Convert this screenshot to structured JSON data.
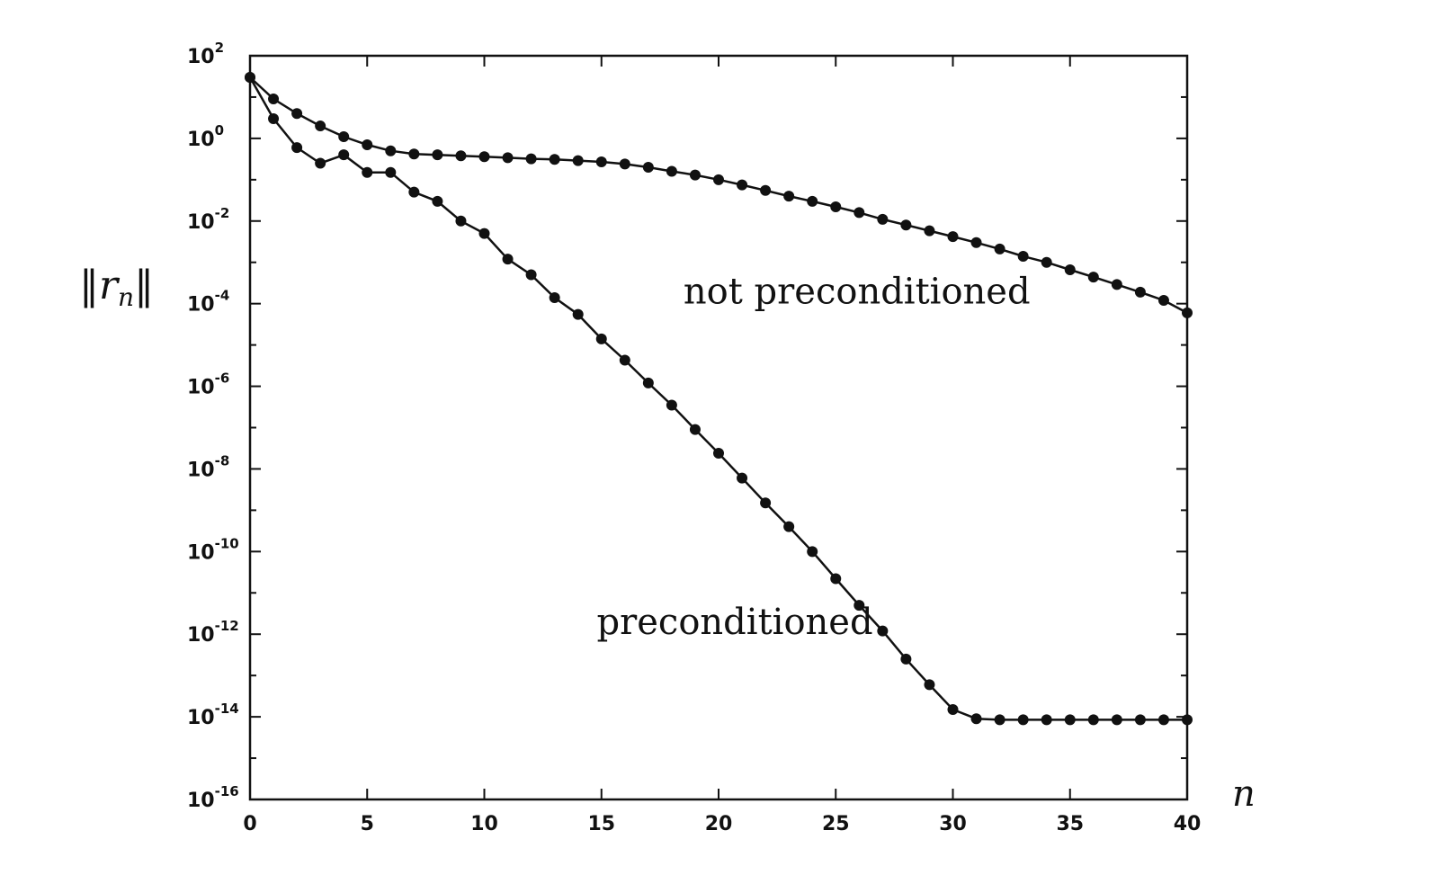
{
  "chart_data": {
    "type": "line",
    "xlabel": "n",
    "ylabel": "‖r_n‖",
    "ylabel_parts": {
      "left_bars": "‖",
      "var": "r",
      "sub": "n",
      "right_bars": "‖"
    },
    "xlim": [
      0,
      40
    ],
    "ylim": [
      1e-16,
      100
    ],
    "yscale": "log",
    "grid": false,
    "x_ticks": [
      0,
      5,
      10,
      15,
      20,
      25,
      30,
      35,
      40
    ],
    "x_tick_labels": [
      "0",
      "5",
      "10",
      "15",
      "20",
      "25",
      "30",
      "35",
      "40"
    ],
    "y_tick_exponents": [
      2,
      0,
      -2,
      -4,
      -6,
      -8,
      -10,
      -12,
      -14,
      -16
    ],
    "y_tick_labels": [
      {
        "base": "10",
        "exp": "2"
      },
      {
        "base": "10",
        "exp": "0"
      },
      {
        "base": "10",
        "exp": "-2"
      },
      {
        "base": "10",
        "exp": "-4"
      },
      {
        "base": "10",
        "exp": "-6"
      },
      {
        "base": "10",
        "exp": "-8"
      },
      {
        "base": "10",
        "exp": "-10"
      },
      {
        "base": "10",
        "exp": "-12"
      },
      {
        "base": "10",
        "exp": "-14"
      },
      {
        "base": "10",
        "exp": "-16"
      }
    ],
    "x": [
      0,
      1,
      2,
      3,
      4,
      5,
      6,
      7,
      8,
      9,
      10,
      11,
      12,
      13,
      14,
      15,
      16,
      17,
      18,
      19,
      20,
      21,
      22,
      23,
      24,
      25,
      26,
      27,
      28,
      29,
      30,
      31,
      32,
      33,
      34,
      35,
      36,
      37,
      38,
      39,
      40
    ],
    "series": [
      {
        "name": "not preconditioned",
        "values": [
          30,
          9,
          4,
          2,
          1.1,
          0.7,
          0.5,
          0.42,
          0.4,
          0.38,
          0.36,
          0.34,
          0.32,
          0.31,
          0.29,
          0.27,
          0.24,
          0.2,
          0.16,
          0.13,
          0.1,
          0.075,
          0.055,
          0.04,
          0.03,
          0.022,
          0.016,
          0.011,
          0.008,
          0.0058,
          0.0042,
          0.003,
          0.0021,
          0.0014,
          0.001,
          0.00066,
          0.00044,
          0.00029,
          0.00019,
          0.00012,
          6e-05
        ]
      },
      {
        "name": "preconditioned",
        "values": [
          30,
          3,
          0.6,
          0.25,
          0.4,
          0.15,
          0.15,
          0.05,
          0.03,
          0.01,
          0.005,
          0.0012,
          0.0005,
          0.00014,
          5.5e-05,
          1.4e-05,
          4.3e-06,
          1.2e-06,
          3.5e-07,
          9e-08,
          2.4e-08,
          6e-09,
          1.5e-09,
          4e-10,
          1e-10,
          2.2e-11,
          5e-12,
          1.2e-12,
          2.5e-13,
          6e-14,
          1.5e-14,
          9e-15,
          8.5e-15,
          8.5e-15,
          8.5e-15,
          8.5e-15,
          8.5e-15,
          8.5e-15,
          8.5e-15,
          8.5e-15,
          8.5e-15
        ]
      }
    ],
    "annotations": [
      {
        "text": "not preconditioned",
        "x": 18.5,
        "y": 0.0001
      },
      {
        "text": "preconditioned",
        "x": 14.8,
        "y": 1e-12
      }
    ]
  }
}
